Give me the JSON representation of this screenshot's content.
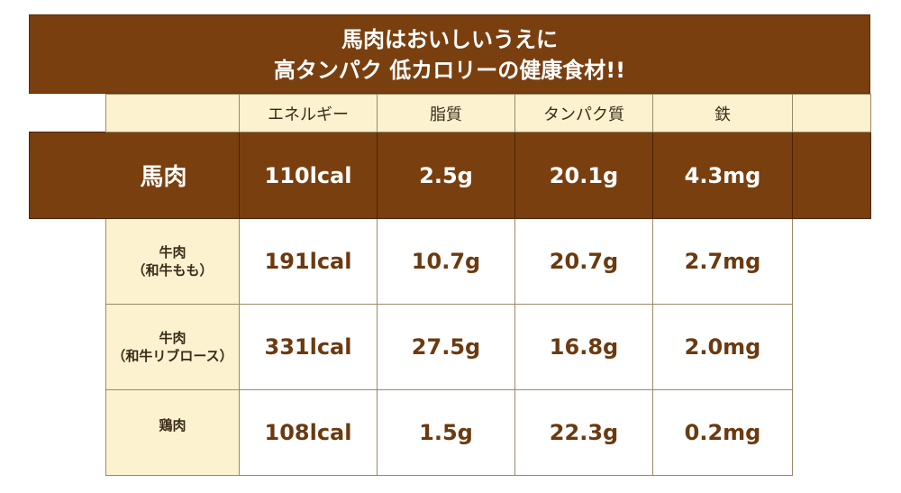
{
  "title": {
    "line1": "馬肉はおいしいうえに",
    "line2": "高タンパク 低カロリーの健康食材!!"
  },
  "columns": [
    "エネルギー",
    "脂質",
    "タンパク質",
    "鉄"
  ],
  "highlight_row": {
    "label": "馬肉",
    "values": [
      "110lcal",
      "2.5g",
      "20.1g",
      "4.3mg"
    ]
  },
  "rows": [
    {
      "label_line1": "牛肉",
      "label_line2": "（和牛もも）",
      "values": [
        "191lcal",
        "10.7g",
        "20.7g",
        "2.7mg"
      ]
    },
    {
      "label_line1": "牛肉",
      "label_line2": "（和牛リブロース）",
      "values": [
        "331lcal",
        "27.5g",
        "16.8g",
        "2.0mg"
      ]
    },
    {
      "label_line1": "鶏肉",
      "label_line2": "",
      "values": [
        "108lcal",
        "1.5g",
        "22.3g",
        "0.2mg"
      ]
    }
  ],
  "colors": {
    "brown": "#7a3f0f",
    "cream": "#fdf2cf",
    "value_text": "#6b3a10"
  }
}
